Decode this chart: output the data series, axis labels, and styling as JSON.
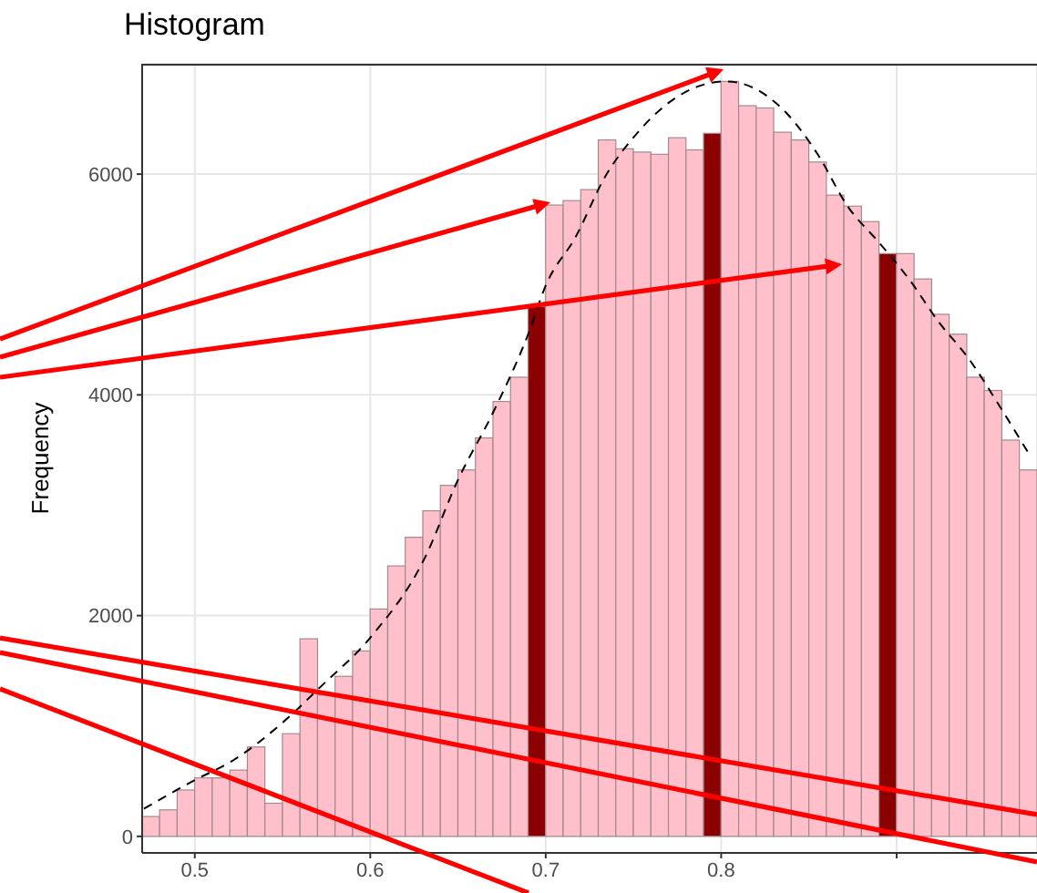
{
  "chart_data": {
    "type": "histogram",
    "title": "Histogram",
    "ylabel": "Frequency",
    "bins": [
      0.47,
      0.48,
      0.49,
      0.5,
      0.51,
      0.52,
      0.53,
      0.54,
      0.55,
      0.56,
      0.57,
      0.58,
      0.59,
      0.6,
      0.61,
      0.62,
      0.63,
      0.64,
      0.65,
      0.66,
      0.67,
      0.68,
      0.69,
      0.7,
      0.71,
      0.72,
      0.73,
      0.74,
      0.75,
      0.76,
      0.77,
      0.78,
      0.79,
      0.8,
      0.81,
      0.82,
      0.83,
      0.84,
      0.85,
      0.86,
      0.87,
      0.88,
      0.89,
      0.9,
      0.91,
      0.92,
      0.93,
      0.94,
      0.95,
      0.96,
      0.97,
      0.98
    ],
    "values": [
      180,
      240,
      420,
      530,
      530,
      600,
      810,
      300,
      930,
      1790,
      1280,
      1450,
      1680,
      2060,
      2450,
      2710,
      2950,
      3180,
      3320,
      3610,
      3940,
      4160,
      4800,
      5720,
      5760,
      5860,
      6310,
      6230,
      6200,
      6180,
      6330,
      6220,
      6370,
      6840,
      6620,
      6600,
      6380,
      6310,
      6110,
      5810,
      5710,
      5570,
      5280,
      5280,
      5050,
      4730,
      4550,
      4160,
      4040,
      3590,
      3320
    ],
    "colors": [
      "#ffc0cb",
      "#ffc0cb",
      "#ffc0cb",
      "#ffc0cb",
      "#ffc0cb",
      "#ffc0cb",
      "#ffc0cb",
      "#ffc0cb",
      "#ffc0cb",
      "#ffc0cb",
      "#ffc0cb",
      "#ffc0cb",
      "#ffc0cb",
      "#ffc0cb",
      "#ffc0cb",
      "#ffc0cb",
      "#ffc0cb",
      "#ffc0cb",
      "#ffc0cb",
      "#ffc0cb",
      "#ffc0cb",
      "#ffc0cb",
      "#8b0000",
      "#ffc0cb",
      "#ffc0cb",
      "#ffc0cb",
      "#ffc0cb",
      "#ffc0cb",
      "#ffc0cb",
      "#ffc0cb",
      "#ffc0cb",
      "#ffc0cb",
      "#8b0000",
      "#ffc0cb",
      "#ffc0cb",
      "#ffc0cb",
      "#ffc0cb",
      "#ffc0cb",
      "#ffc0cb",
      "#ffc0cb",
      "#ffc0cb",
      "#ffc0cb",
      "#8b0000",
      "#ffc0cb",
      "#ffc0cb",
      "#ffc0cb",
      "#ffc0cb",
      "#ffc0cb",
      "#ffc0cb",
      "#ffc0cb",
      "#ffc0cb"
    ],
    "series": [
      {
        "type": "line",
        "color": "#000000",
        "line_style": "dashed",
        "x": [
          0.471,
          0.5,
          0.521,
          0.55,
          0.572,
          0.6,
          0.631,
          0.65,
          0.67,
          0.69,
          0.7,
          0.717,
          0.734,
          0.752,
          0.786,
          0.803,
          0.838,
          0.855,
          0.872,
          0.89,
          0.907,
          0.924,
          0.941,
          0.959,
          0.976
        ],
        "values": [
          250,
          510,
          680,
          1030,
          1360,
          1800,
          2520,
          3230,
          3840,
          4550,
          4990,
          5430,
          5980,
          6370,
          6790,
          6840,
          6540,
          6180,
          5710,
          5380,
          5050,
          4660,
          4330,
          3890,
          3450
        ]
      }
    ],
    "xlim": [
      0.47,
      0.98
    ],
    "xticks": [
      0.5,
      0.6,
      0.7,
      0.8,
      {
        "value": 0.9,
        "label": null
      }
    ],
    "ylim": [
      -150,
      7000
    ],
    "yticks": [
      0,
      2000,
      4000,
      6000
    ],
    "grid": true,
    "legend": false,
    "marker": "none"
  }
}
